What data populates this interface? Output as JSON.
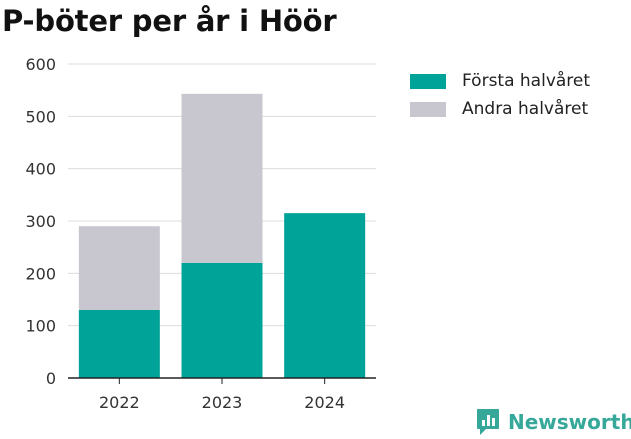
{
  "title": "P-böter per år i Höör",
  "brand": {
    "name": "Newsworthy",
    "icon": "newsworthy-chart-icon"
  },
  "colors": {
    "first_half": "#00a398",
    "second_half": "#c8c7d0",
    "grid": "#dcdcdc",
    "axis": "#222222",
    "tick_text": "#333333",
    "brand": "#36a89a"
  },
  "legend": [
    {
      "label": "Första halvåret",
      "color": "#00a398"
    },
    {
      "label": "Andra halvåret",
      "color": "#c8c7d0"
    }
  ],
  "chart_data": {
    "type": "bar",
    "stacked": true,
    "title": "P-böter per år i Höör",
    "xlabel": "",
    "ylabel": "",
    "categories": [
      "2022",
      "2023",
      "2024"
    ],
    "series": [
      {
        "name": "Första halvåret",
        "color": "#00a398",
        "values": [
          130,
          220,
          315
        ]
      },
      {
        "name": "Andra halvåret",
        "color": "#c8c7d0",
        "values": [
          160,
          323,
          0
        ]
      }
    ],
    "ylim": [
      0,
      600
    ],
    "yticks": [
      0,
      100,
      200,
      300,
      400,
      500,
      600
    ],
    "grid": true,
    "legend_position": "right"
  }
}
